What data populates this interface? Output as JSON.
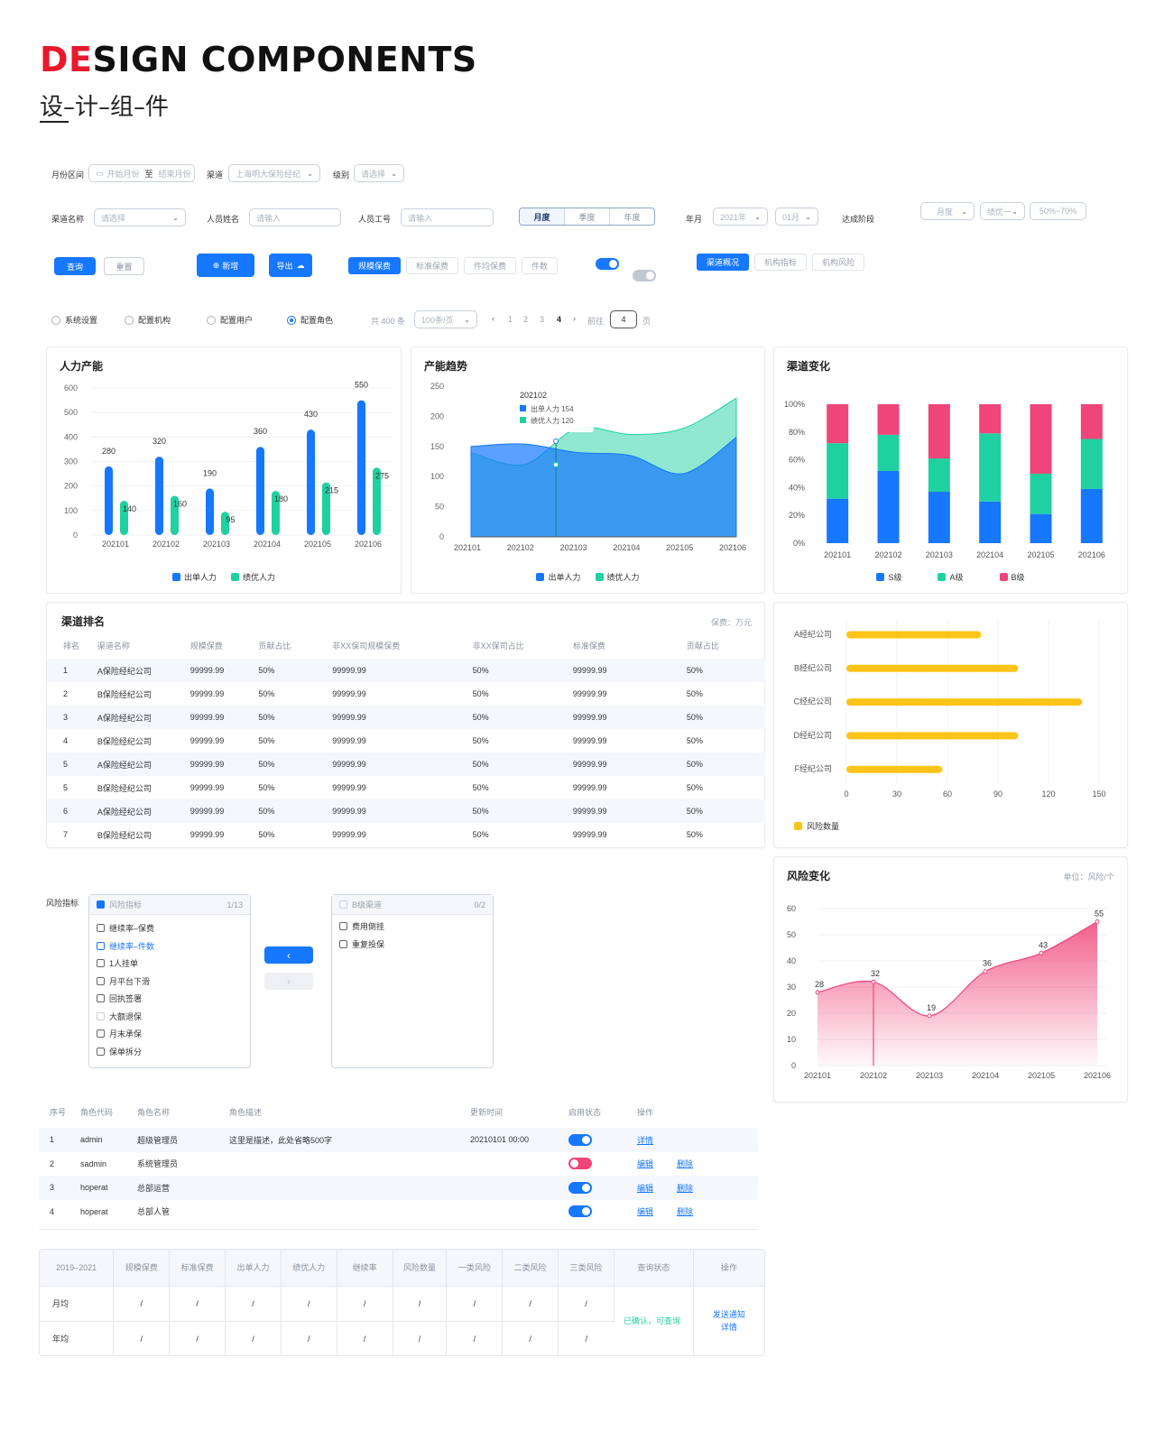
{
  "header": {
    "title_red": "DE",
    "title_rest": "SIGN COMPONENTS",
    "subtitle": "设–计–组–件"
  },
  "filters1": {
    "month_range_label": "月份区间",
    "start_month": "开始月份",
    "to": "至",
    "end_month": "结束月份",
    "channel_label": "渠道",
    "channel_value": "上海明大保险经纪",
    "level_label": "级别",
    "level_placeholder": "请选择"
  },
  "filters2": {
    "channel_name_label": "渠道名称",
    "channel_name_placeholder": "请选择",
    "person_name_label": "人员姓名",
    "person_name_placeholder": "请输入",
    "person_id_label": "人员工号",
    "person_id_placeholder": "请输入",
    "period_tabs": [
      "月度",
      "季度",
      "年度"
    ],
    "year_month_label": "年月",
    "year_value": "2021年",
    "month_value": "01月",
    "stage_label": "达成阶段",
    "stage_period": "月度",
    "stage_level": "绩优一",
    "stage_range": "50%~70%"
  },
  "buttons": {
    "query": "查询",
    "reset": "重置",
    "add": "新增",
    "export": "导出"
  },
  "fee_tabs": [
    "规模保费",
    "标准保费",
    "件均保费",
    "件数"
  ],
  "channel_tabs": [
    "渠道概况",
    "机构指标",
    "机构风险"
  ],
  "radios": [
    "系统设置",
    "配置机构",
    "配置用户",
    "配置角色"
  ],
  "pagination": {
    "total": "共 400 条",
    "page_size": "100条/页",
    "pages": [
      "1",
      "2",
      "3",
      "4"
    ],
    "goto_label": "前往",
    "goto_value": "4",
    "page_unit": "页"
  },
  "colors": {
    "blue": "#1677ff",
    "green": "#1fd1a0",
    "pink": "#f0457a",
    "yellow": "#fcc419"
  },
  "chart_data": [
    {
      "type": "bar",
      "title": "人力产能",
      "categories": [
        "202101",
        "202102",
        "202103",
        "202104",
        "202105",
        "202106"
      ],
      "series": [
        {
          "name": "出单人力",
          "values": [
            280,
            320,
            190,
            360,
            430,
            550
          ]
        },
        {
          "name": "绩优人力",
          "values": [
            140,
            160,
            95,
            180,
            215,
            275
          ]
        }
      ],
      "ylim": [
        0,
        600
      ],
      "yticks": [
        "0",
        "100",
        "200",
        "300",
        "400",
        "500",
        "600"
      ],
      "legend": "bottom"
    },
    {
      "type": "area",
      "title": "产能趋势",
      "categories": [
        "202101",
        "202102",
        "202103",
        "202104",
        "202105",
        "202106"
      ],
      "series": [
        {
          "name": "出单人力",
          "values": [
            150,
            154,
            140,
            135,
            105,
            165
          ]
        },
        {
          "name": "绩优人力",
          "values": [
            140,
            120,
            180,
            170,
            180,
            230
          ]
        }
      ],
      "ylim": [
        0,
        250
      ],
      "yticks": [
        "0",
        "50",
        "100",
        "150",
        "200",
        "250"
      ],
      "tooltip": {
        "title": "202102",
        "rows": [
          "出单人力 154",
          "绩优人力 120"
        ]
      },
      "legend": "bottom"
    },
    {
      "type": "bar",
      "stacked": true,
      "title": "渠道变化",
      "categories": [
        "202101",
        "202102",
        "202103",
        "202104",
        "202105",
        "202106"
      ],
      "series": [
        {
          "name": "S级",
          "values": [
            32,
            52,
            37,
            30,
            21,
            39
          ]
        },
        {
          "name": "A级",
          "values": [
            40,
            26,
            24,
            49,
            29,
            36
          ]
        },
        {
          "name": "B级",
          "values": [
            28,
            22,
            39,
            21,
            50,
            25
          ]
        }
      ],
      "ylim": [
        0,
        100
      ],
      "yticks": [
        "0%",
        "20%",
        "40%",
        "60%",
        "80%",
        "100%"
      ],
      "legend": "bottom"
    },
    {
      "type": "bar",
      "orientation": "horizontal",
      "categories": [
        "A经纪公司",
        "B经纪公司",
        "C经纪公司",
        "D经纪公司",
        "F经纪公司"
      ],
      "series": [
        {
          "name": "风险数量",
          "values": [
            80,
            102,
            140,
            102,
            57
          ]
        }
      ],
      "xlim": [
        0,
        150
      ],
      "xticks": [
        "0",
        "30",
        "60",
        "90",
        "120",
        "150"
      ],
      "legend": "bottom-left"
    },
    {
      "type": "area",
      "title": "风险变化",
      "unit": "单位：风险/个",
      "categories": [
        "202101",
        "202102",
        "202103",
        "202104",
        "202105",
        "202106"
      ],
      "series": [
        {
          "values": [
            28,
            32,
            19,
            36,
            43,
            55
          ]
        }
      ],
      "ylim": [
        0,
        60
      ],
      "yticks": [
        "0",
        "10",
        "20",
        "30",
        "40",
        "50",
        "60"
      ]
    }
  ],
  "ranking": {
    "title": "渠道排名",
    "unit": "保费：万元",
    "columns": [
      "排名",
      "渠道名称",
      "规模保费",
      "贡献占比",
      "非XX保司规模保费",
      "非XX保司占比",
      "标准保费",
      "贡献占比"
    ],
    "rows": [
      [
        "1",
        "A保险经纪公司",
        "99999.99",
        "50%",
        "99999.99",
        "50%",
        "99999.99",
        "50%"
      ],
      [
        "2",
        "B保险经纪公司",
        "99999.99",
        "50%",
        "99999.99",
        "50%",
        "99999.99",
        "50%"
      ],
      [
        "3",
        "A保险经纪公司",
        "99999.99",
        "50%",
        "99999.99",
        "50%",
        "99999.99",
        "50%"
      ],
      [
        "4",
        "B保险经纪公司",
        "99999.99",
        "50%",
        "99999.99",
        "50%",
        "99999.99",
        "50%"
      ],
      [
        "5",
        "A保险经纪公司",
        "99999.99",
        "50%",
        "99999.99",
        "50%",
        "99999.99",
        "50%"
      ],
      [
        "5",
        "B保险经纪公司",
        "99999.99",
        "50%",
        "99999.99",
        "50%",
        "99999.99",
        "50%"
      ],
      [
        "6",
        "A保险经纪公司",
        "99999.99",
        "50%",
        "99999.99",
        "50%",
        "99999.99",
        "50%"
      ],
      [
        "7",
        "B保险经纪公司",
        "99999.99",
        "50%",
        "99999.99",
        "50%",
        "99999.99",
        "50%"
      ]
    ]
  },
  "transfer": {
    "label": "风险指标",
    "left": {
      "title": "风险指标",
      "count": "1/13",
      "items": [
        "继续率–保费",
        "继续率–件数",
        "1人挂单",
        "月平台下滑",
        "回执签署",
        "大额退保",
        "月末承保",
        "保单拆分"
      ]
    },
    "right": {
      "title": "B级渠道",
      "count": "0/2",
      "items": [
        "费用倒挂",
        "重复投保"
      ]
    }
  },
  "roles": {
    "columns": [
      "序号",
      "角色代码",
      "角色名称",
      "角色描述",
      "更新时间",
      "启用状态",
      "操作"
    ],
    "rows": [
      {
        "no": "1",
        "code": "admin",
        "name": "超级管理员",
        "desc": "这里是描述，此处省略500字",
        "time": "20210101 00:00",
        "op1": "详情",
        "op2": ""
      },
      {
        "no": "2",
        "code": "sadmin",
        "name": "系统管理员",
        "desc": "",
        "time": "",
        "op1": "编辑",
        "op2": "删除"
      },
      {
        "no": "3",
        "code": "hoperat",
        "name": "总部运营",
        "desc": "",
        "time": "",
        "op1": "编辑",
        "op2": "删除"
      },
      {
        "no": "4",
        "code": "hoperat",
        "name": "总部人管",
        "desc": "",
        "time": "",
        "op1": "编辑",
        "op2": "删除"
      }
    ]
  },
  "summary": {
    "columns": [
      "2019–2021",
      "规模保费",
      "标准保费",
      "出单人力",
      "绩优人力",
      "继续率",
      "风险数量",
      "一类风险",
      "二类风险",
      "三类风险",
      "查询状态",
      "操作"
    ],
    "rows": [
      {
        "label": "月均",
        "vals": [
          "/",
          "/",
          "/",
          "/",
          "/",
          "/",
          "/",
          "/",
          "/"
        ]
      },
      {
        "label": "年均",
        "vals": [
          "/",
          "/",
          "/",
          "/",
          "/",
          "/",
          "/",
          "/",
          "/"
        ]
      }
    ],
    "status": "已确认，可查询",
    "action1": "发送通知",
    "action2": "详情"
  }
}
